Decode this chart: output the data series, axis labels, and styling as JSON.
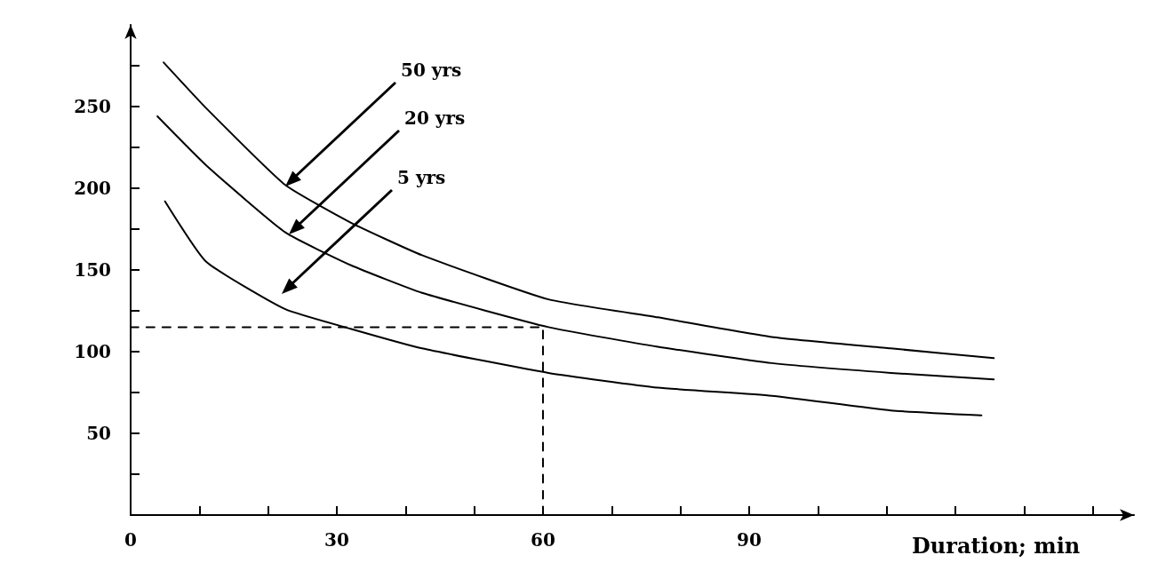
{
  "chart_data": {
    "type": "line",
    "xlabel": "Duration; min",
    "marker": "none",
    "xlim": [
      0,
      146
    ],
    "ylim": [
      0,
      300
    ],
    "xticks": [
      0,
      {
        "value": 10,
        "label": null
      },
      {
        "value": 20,
        "label": null
      },
      30,
      {
        "value": 40,
        "label": null
      },
      {
        "value": 50,
        "label": null
      },
      60,
      {
        "value": 70,
        "label": null
      },
      {
        "value": 80,
        "label": null
      },
      90,
      {
        "value": 100,
        "label": null
      },
      {
        "value": 110,
        "label": null
      },
      {
        "value": 120,
        "label": null
      },
      {
        "value": 130,
        "label": null
      },
      {
        "value": 140,
        "label": null
      }
    ],
    "yticks": [
      {
        "value": 25,
        "label": null
      },
      50,
      {
        "value": 75,
        "label": null
      },
      100,
      {
        "value": 125,
        "label": null
      },
      150,
      {
        "value": 175,
        "label": null
      },
      200,
      {
        "value": 225,
        "label": null
      },
      250,
      {
        "value": 275,
        "label": null
      }
    ],
    "series": [
      {
        "color": "#000000",
        "line_style": "solid",
        "x": [
          4.8,
          11,
          22.5,
          32,
          42.4,
          60.8,
          76.7,
          93.3,
          110.6,
          125.6
        ],
        "values": [
          277,
          249,
          202,
          179,
          159,
          132,
          121,
          109,
          102,
          96
        ]
      },
      {
        "color": "#000000",
        "line_style": "solid",
        "x": [
          3.9,
          11,
          22.5,
          32,
          42.4,
          60.8,
          76.7,
          93.3,
          110.6,
          125.6
        ],
        "values": [
          244,
          214,
          173,
          153,
          136,
          115,
          103,
          93,
          87,
          83
        ]
      },
      {
        "color": "#000000",
        "line_style": "solid",
        "x": [
          5,
          11,
          22.5,
          32,
          42.4,
          60.8,
          76.7,
          93.3,
          110.6,
          123.8
        ],
        "values": [
          192,
          155,
          126,
          114,
          102,
          87,
          78,
          73,
          64,
          61
        ]
      },
      {
        "color": "#000000",
        "line_style": "dashed",
        "x": [
          0,
          60,
          60
        ],
        "values": [
          115,
          115,
          0
        ]
      }
    ],
    "annotations": [
      "50 yrs",
      "20 yrs",
      "5 yrs"
    ]
  }
}
